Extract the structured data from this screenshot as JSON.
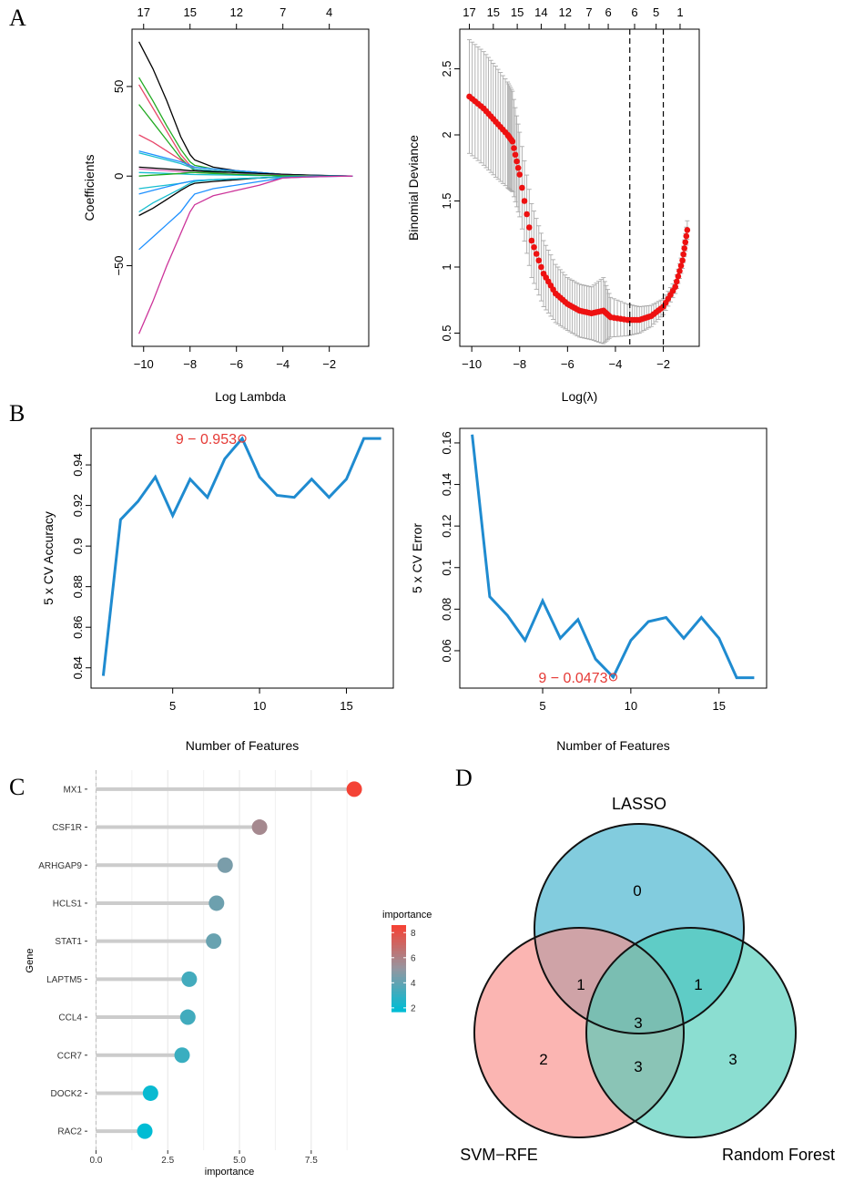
{
  "panel_labels": {
    "a": "A",
    "b": "B",
    "c": "C",
    "d": "D"
  },
  "chart_data": [
    {
      "id": "lasso_coef",
      "type": "line",
      "xlabel": "Log Lambda",
      "ylabel": "Coefficients",
      "xlim": [
        -10.5,
        -0.3
      ],
      "ylim": [
        -95,
        82
      ],
      "xticks": [
        -10,
        -8,
        -6,
        -4,
        -2
      ],
      "yticks": [
        -50,
        0,
        50
      ],
      "top_axis_ticks": [
        {
          "x": -10,
          "label": "17"
        },
        {
          "x": -8,
          "label": "15"
        },
        {
          "x": -6,
          "label": "12"
        },
        {
          "x": -4,
          "label": "7"
        },
        {
          "x": -2,
          "label": "4"
        }
      ],
      "x": [
        -10.2,
        -9.6,
        -9.0,
        -8.4,
        -8.0,
        -7.8,
        -7.0,
        -6.0,
        -5.0,
        -4.0,
        -3.0,
        -2.0,
        -1.0
      ],
      "series": [
        {
          "name": "s1",
          "color": "#000000",
          "values": [
            75,
            60,
            42,
            22,
            12,
            9,
            5,
            3,
            2,
            1,
            0.6,
            0.3,
            0
          ]
        },
        {
          "name": "s2",
          "color": "#22aa22",
          "values": [
            55,
            42,
            28,
            15,
            8,
            6,
            4,
            2.5,
            1.5,
            0.6,
            0.3,
            0.1,
            0
          ]
        },
        {
          "name": "s3",
          "color": "#e8476a",
          "values": [
            51,
            38,
            25,
            12,
            6,
            4,
            3,
            2,
            1,
            0.5,
            0.2,
            0.1,
            0
          ]
        },
        {
          "name": "s4",
          "color": "#22aa22",
          "values": [
            40,
            30,
            20,
            10,
            5,
            3,
            2,
            1,
            0.5,
            0.3,
            0.1,
            0,
            0
          ]
        },
        {
          "name": "s5",
          "color": "#e8476a",
          "values": [
            23,
            19,
            14,
            9,
            5,
            4,
            3,
            2,
            1,
            0.5,
            0.2,
            0.1,
            0
          ]
        },
        {
          "name": "s6",
          "color": "#1e90ff",
          "values": [
            14,
            12,
            10,
            8,
            6,
            5,
            4,
            3,
            2,
            1,
            0.5,
            0.2,
            0
          ]
        },
        {
          "name": "s7",
          "color": "#17becf",
          "values": [
            13,
            11,
            9,
            7,
            5,
            4,
            3,
            2,
            1,
            0.5,
            0.2,
            0,
            0
          ]
        },
        {
          "name": "s8",
          "color": "#000000",
          "values": [
            5,
            4.5,
            4,
            3.5,
            3,
            3,
            2.5,
            2,
            1.5,
            1,
            0.5,
            0.2,
            0
          ]
        },
        {
          "name": "s9",
          "color": "#e377c2",
          "values": [
            4,
            3.5,
            3,
            2.5,
            2,
            2,
            1.6,
            1.2,
            0.8,
            0.4,
            0.2,
            0,
            0
          ]
        },
        {
          "name": "s10",
          "color": "#17becf",
          "values": [
            2,
            1.8,
            1.5,
            1.2,
            1,
            0.9,
            0.7,
            0.5,
            0.3,
            0.2,
            0.1,
            0,
            0
          ]
        },
        {
          "name": "s11",
          "color": "#22aa22",
          "values": [
            0,
            0.5,
            1,
            1.5,
            2,
            2,
            1.5,
            1,
            0.5,
            0.2,
            0,
            0,
            0
          ]
        },
        {
          "name": "s12",
          "color": "#17becf",
          "values": [
            -7,
            -6,
            -5,
            -4,
            -3,
            -2.5,
            -2,
            -1.5,
            -1,
            -0.5,
            -0.2,
            0,
            0
          ]
        },
        {
          "name": "s13",
          "color": "#1e90ff",
          "values": [
            -10,
            -8,
            -6,
            -4,
            -3,
            -2.5,
            -2,
            -1.5,
            -1,
            -0.5,
            -0.2,
            0,
            0
          ]
        },
        {
          "name": "s14",
          "color": "#000000",
          "values": [
            -22,
            -18,
            -13,
            -8,
            -5,
            -4,
            -3,
            -2,
            -1,
            -0.5,
            -0.2,
            0,
            0
          ]
        },
        {
          "name": "s15",
          "color": "#17becf",
          "values": [
            -20,
            -15,
            -11,
            -7,
            -4,
            -3,
            -2,
            -1.5,
            -1,
            -0.5,
            -0.2,
            0,
            0
          ]
        },
        {
          "name": "s16",
          "color": "#1e90ff",
          "values": [
            -41,
            -34,
            -27,
            -20,
            -13,
            -10,
            -7,
            -5,
            -3,
            -1,
            -0.5,
            -0.2,
            0
          ]
        },
        {
          "name": "s17",
          "color": "#cc3399",
          "values": [
            -88,
            -70,
            -50,
            -32,
            -20,
            -16,
            -11,
            -8,
            -5,
            -1,
            -0.5,
            -0.2,
            0
          ]
        }
      ]
    },
    {
      "id": "lasso_cv",
      "type": "scatter",
      "xlabel": "Log(λ)",
      "ylabel": "Binomial Deviance",
      "xlim": [
        -10.5,
        -0.5
      ],
      "ylim": [
        0.4,
        2.8
      ],
      "xticks": [
        -10,
        -8,
        -6,
        -4,
        -2
      ],
      "yticks": [
        0.5,
        1.0,
        1.5,
        2.0,
        2.5
      ],
      "top_axis_ticks": [
        {
          "x": -10.1,
          "label": "17"
        },
        {
          "x": -9.1,
          "label": "15"
        },
        {
          "x": -8.1,
          "label": "15"
        },
        {
          "x": -7.1,
          "label": "14"
        },
        {
          "x": -6.1,
          "label": "12"
        },
        {
          "x": -5.1,
          "label": "7"
        },
        {
          "x": -4.3,
          "label": "6"
        },
        {
          "x": -3.2,
          "label": "6"
        },
        {
          "x": -2.3,
          "label": "5"
        },
        {
          "x": -1.3,
          "label": "1"
        }
      ],
      "vlines": [
        -3.4,
        -2.0
      ],
      "point_color": "#ee1111",
      "errbar_color": "#aaaaaa",
      "x": [
        -10.1,
        -9.5,
        -9.0,
        -8.5,
        -8.3,
        -8.0,
        -7.5,
        -7.0,
        -6.5,
        -6.0,
        -5.5,
        -5.0,
        -4.5,
        -4.2,
        -3.5,
        -3.0,
        -2.5,
        -2.0,
        -1.5,
        -1.2,
        -1.0
      ],
      "values": [
        2.29,
        2.2,
        2.1,
        2.0,
        1.95,
        1.7,
        1.2,
        0.95,
        0.8,
        0.72,
        0.67,
        0.65,
        0.67,
        0.62,
        0.6,
        0.6,
        0.63,
        0.7,
        0.85,
        1.05,
        1.28
      ],
      "err": [
        0.43,
        0.43,
        0.42,
        0.4,
        0.38,
        0.32,
        0.28,
        0.25,
        0.22,
        0.2,
        0.2,
        0.2,
        0.25,
        0.15,
        0.12,
        0.1,
        0.08,
        0.06,
        0.05,
        0.06,
        0.07
      ]
    },
    {
      "id": "svm_accuracy",
      "type": "line",
      "xlabel": "Number of Features",
      "ylabel": "5 x CV Accuracy",
      "xlim": [
        0.3,
        17.7
      ],
      "ylim": [
        0.83,
        0.958
      ],
      "xticks": [
        5,
        10,
        15
      ],
      "yticks": [
        0.84,
        0.86,
        0.88,
        0.9,
        0.92,
        0.94
      ],
      "x": [
        1,
        2,
        3,
        4,
        5,
        6,
        7,
        8,
        9,
        10,
        11,
        12,
        13,
        14,
        15,
        16,
        17
      ],
      "values": [
        0.836,
        0.913,
        0.922,
        0.934,
        0.915,
        0.933,
        0.924,
        0.943,
        0.953,
        0.934,
        0.925,
        0.924,
        0.933,
        0.924,
        0.933,
        0.953,
        0.953
      ],
      "highlight": {
        "x": 9,
        "y": 0.953,
        "label": "9 − 0.953"
      },
      "line_color": "#1f8bd0"
    },
    {
      "id": "svm_error",
      "type": "line",
      "xlabel": "Number of Features",
      "ylabel": "5 x CV Error",
      "xlim": [
        0.3,
        17.7
      ],
      "ylim": [
        0.042,
        0.167
      ],
      "xticks": [
        5,
        10,
        15
      ],
      "yticks": [
        0.06,
        0.08,
        0.1,
        0.12,
        0.14,
        0.16
      ],
      "x": [
        1,
        2,
        3,
        4,
        5,
        6,
        7,
        8,
        9,
        10,
        11,
        12,
        13,
        14,
        15,
        16,
        17
      ],
      "values": [
        0.164,
        0.086,
        0.077,
        0.065,
        0.084,
        0.066,
        0.075,
        0.056,
        0.0473,
        0.065,
        0.074,
        0.076,
        0.066,
        0.076,
        0.066,
        0.047,
        0.047
      ],
      "highlight": {
        "x": 9,
        "y": 0.0473,
        "label": "9 − 0.0473"
      },
      "line_color": "#1f8bd0"
    },
    {
      "id": "rf_importance",
      "type": "lollipop",
      "xlabel": "importance",
      "ylabel": "Gene",
      "xlim": [
        -0.3,
        9.6
      ],
      "xticks": [
        0.0,
        2.5,
        5.0,
        7.5
      ],
      "xtick_labels": [
        "0.0",
        "2.5",
        "5.0",
        "7.5"
      ],
      "categories": [
        "MX1",
        "CSF1R",
        "ARHGAP9",
        "HCLS1",
        "STAT1",
        "LAPTM5",
        "CCL4",
        "CCR7",
        "DOCK2",
        "RAC2"
      ],
      "values": [
        9.0,
        5.7,
        4.5,
        4.2,
        4.1,
        3.25,
        3.2,
        3.0,
        1.9,
        1.7
      ],
      "legend": {
        "title": "importance",
        "ticks": [
          2,
          4,
          6,
          8
        ],
        "low_color": "#00bcd4",
        "high_color": "#f44336"
      }
    },
    {
      "id": "venn",
      "type": "venn",
      "sets": [
        {
          "name": "LASSO",
          "color": "#3fb0cc"
        },
        {
          "name": "SVM−RFE",
          "color": "#f98e88"
        },
        {
          "name": "Random Forest",
          "color": "#4dcdb9"
        }
      ],
      "regions": {
        "lasso_only": "0",
        "svm_only": "2",
        "rf_only": "3",
        "lasso_svm": "1",
        "lasso_rf": "1",
        "svm_rf": "3",
        "all": "3"
      }
    }
  ]
}
